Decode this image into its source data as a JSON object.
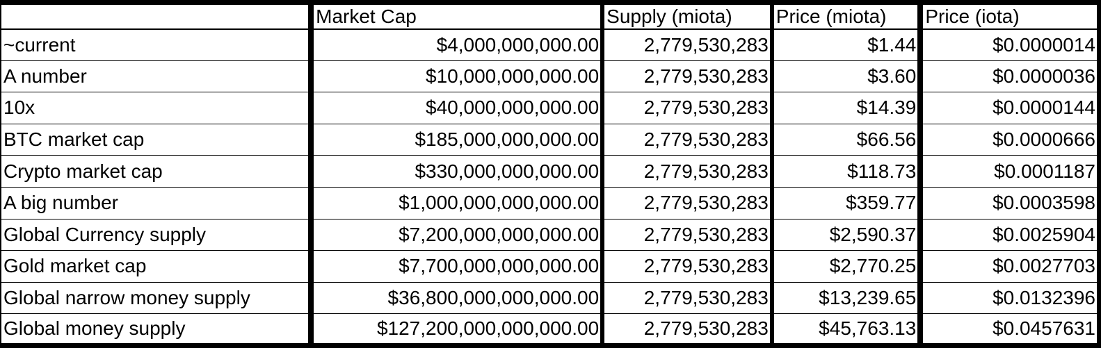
{
  "columns": [
    "",
    "Market Cap",
    "Supply (miota)",
    "Price (miota)",
    "Price (iota)"
  ],
  "rows": [
    {
      "label": "~current",
      "market_cap": "$4,000,000,000.00",
      "supply": "2,779,530,283",
      "price_miota": "$1.44",
      "price_iota": "$0.0000014"
    },
    {
      "label": "A number",
      "market_cap": "$10,000,000,000.00",
      "supply": "2,779,530,283",
      "price_miota": "$3.60",
      "price_iota": "$0.0000036"
    },
    {
      "label": "10x",
      "market_cap": "$40,000,000,000.00",
      "supply": "2,779,530,283",
      "price_miota": "$14.39",
      "price_iota": "$0.0000144"
    },
    {
      "label": "BTC market cap",
      "market_cap": "$185,000,000,000.00",
      "supply": "2,779,530,283",
      "price_miota": "$66.56",
      "price_iota": "$0.0000666"
    },
    {
      "label": "Crypto market cap",
      "market_cap": "$330,000,000,000.00",
      "supply": "2,779,530,283",
      "price_miota": "$118.73",
      "price_iota": "$0.0001187"
    },
    {
      "label": "A big number",
      "market_cap": "$1,000,000,000,000.00",
      "supply": "2,779,530,283",
      "price_miota": "$359.77",
      "price_iota": "$0.0003598"
    },
    {
      "label": "Global Currency supply",
      "market_cap": "$7,200,000,000,000.00",
      "supply": "2,779,530,283",
      "price_miota": "$2,590.37",
      "price_iota": "$0.0025904"
    },
    {
      "label": "Gold market cap",
      "market_cap": "$7,700,000,000,000.00",
      "supply": "2,779,530,283",
      "price_miota": "$2,770.25",
      "price_iota": "$0.0027703"
    },
    {
      "label": "Global narrow money supply",
      "market_cap": "$36,800,000,000,000.00",
      "supply": "2,779,530,283",
      "price_miota": "$13,239.65",
      "price_iota": "$0.0132396"
    },
    {
      "label": "Global money supply",
      "market_cap": "$127,200,000,000,000.00",
      "supply": "2,779,530,283",
      "price_miota": "$45,763.13",
      "price_iota": "$0.0457631"
    }
  ]
}
